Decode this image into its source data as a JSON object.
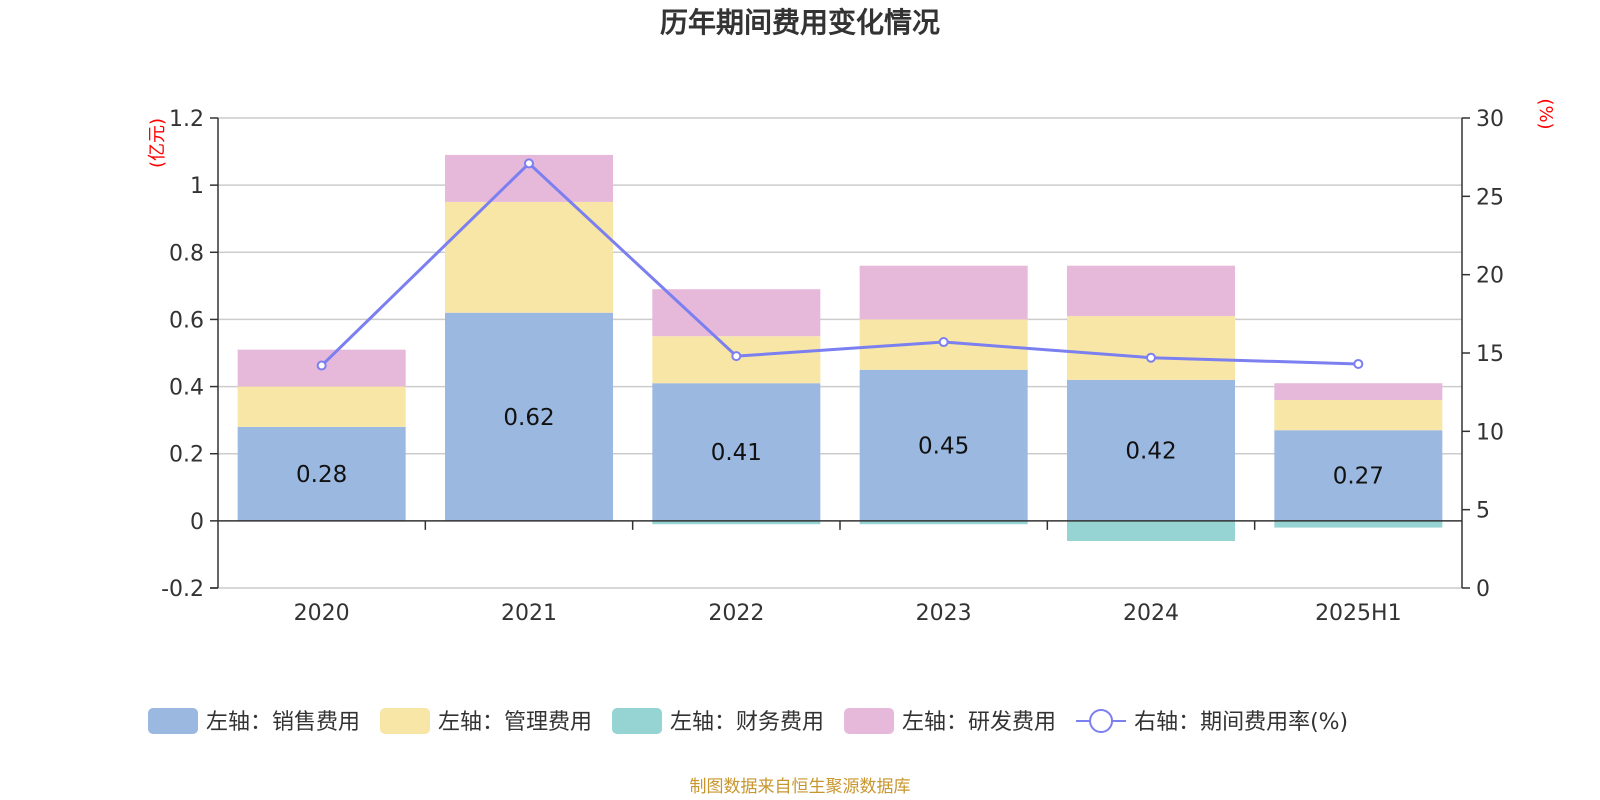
{
  "title": "历年期间费用变化情况",
  "source_note": "制图数据来自恒生聚源数据库",
  "chart_data": {
    "type": "bar",
    "stacked": true,
    "categories": [
      "2020",
      "2021",
      "2022",
      "2023",
      "2024",
      "2025H1"
    ],
    "left_axis": {
      "unit": "(亿元)",
      "ylim": [
        -0.2,
        1.2
      ],
      "ticks": [
        "-0.2",
        "0",
        "0.2",
        "0.4",
        "0.6",
        "0.8",
        "1",
        "1.2"
      ]
    },
    "right_axis": {
      "unit": "(%)",
      "ylim": [
        0,
        30
      ],
      "ticks": [
        "0",
        "5",
        "10",
        "15",
        "20",
        "25",
        "30"
      ]
    },
    "grid": true,
    "legend_position": "bottom",
    "series": [
      {
        "name": "左轴：销售费用",
        "axis": "left",
        "color": "#9bb8e0",
        "values": [
          0.28,
          0.62,
          0.41,
          0.45,
          0.42,
          0.27
        ],
        "labels": [
          "0.28",
          "0.62",
          "0.41",
          "0.45",
          "0.42",
          "0.27"
        ]
      },
      {
        "name": "左轴：管理费用",
        "axis": "left",
        "color": "#f7e6a6",
        "values": [
          0.12,
          0.33,
          0.14,
          0.15,
          0.19,
          0.09
        ]
      },
      {
        "name": "左轴：财务费用",
        "axis": "left",
        "color": "#95d4d3",
        "values": [
          0.0,
          0.0,
          -0.01,
          -0.01,
          -0.06,
          -0.02
        ]
      },
      {
        "name": "左轴：研发费用",
        "axis": "left",
        "color": "#e6b9da",
        "values": [
          0.11,
          0.14,
          0.14,
          0.16,
          0.15,
          0.05
        ]
      },
      {
        "name": "右轴：期间费用率(%)",
        "axis": "right",
        "type": "line",
        "color": "#7b7ff0",
        "values": [
          14.2,
          27.1,
          14.8,
          15.7,
          14.7,
          14.3
        ]
      }
    ]
  }
}
